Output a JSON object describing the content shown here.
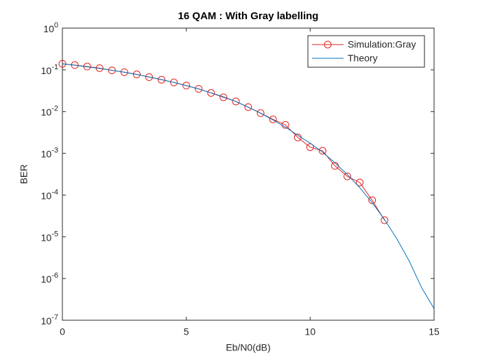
{
  "chart_data": {
    "type": "line",
    "title": "16 QAM : With Gray labelling",
    "xlabel": "Eb/N0(dB)",
    "ylabel": "BER",
    "xlim": [
      0,
      15
    ],
    "xticks": [
      0,
      5,
      10,
      15
    ],
    "ylim": [
      1e-07,
      1
    ],
    "yscale": "log",
    "yticks": [
      {
        "value": 1e-07,
        "label": "10^-7"
      },
      {
        "value": 1e-06,
        "label": "10^-6"
      },
      {
        "value": 1e-05,
        "label": "10^-5"
      },
      {
        "value": 0.0001,
        "label": "10^-4"
      },
      {
        "value": 0.001,
        "label": "10^-3"
      },
      {
        "value": 0.01,
        "label": "10^-2"
      },
      {
        "value": 0.1,
        "label": "10^-1"
      },
      {
        "value": 1,
        "label": "10^0"
      }
    ],
    "legend": "northeast",
    "series": [
      {
        "name": "Simulation:Gray",
        "color": "#e0201b",
        "marker": "circle",
        "x": [
          0,
          0.5,
          1,
          1.5,
          2,
          2.5,
          3,
          3.5,
          4,
          4.5,
          5,
          5.5,
          6,
          6.5,
          7,
          7.5,
          8,
          8.5,
          9,
          9.5,
          10,
          10.5,
          11,
          11.5,
          12,
          12.5,
          13
        ],
        "values": [
          0.14,
          0.13,
          0.12,
          0.11,
          0.097,
          0.088,
          0.078,
          0.067,
          0.058,
          0.05,
          0.042,
          0.035,
          0.028,
          0.022,
          0.0175,
          0.0128,
          0.0092,
          0.0065,
          0.0048,
          0.0024,
          0.0014,
          0.00115,
          0.0005,
          0.00028,
          0.0002,
          7.5e-05,
          2.5e-05
        ]
      },
      {
        "name": "Theory",
        "color": "#0072bd",
        "marker": "none",
        "x": [
          0,
          0.5,
          1,
          1.5,
          2,
          2.5,
          3,
          3.5,
          4,
          4.5,
          5,
          5.5,
          6,
          6.5,
          7,
          7.5,
          8,
          8.5,
          9,
          9.5,
          10,
          10.5,
          11,
          11.5,
          12,
          12.5,
          13,
          13.5,
          14,
          14.5,
          15
        ],
        "values": [
          0.139,
          0.129,
          0.118,
          0.108,
          0.0978,
          0.0874,
          0.0775,
          0.0679,
          0.0585,
          0.0498,
          0.0419,
          0.0347,
          0.0282,
          0.0225,
          0.0175,
          0.0127,
          0.0091,
          0.0063,
          0.00424,
          0.0027,
          0.00175,
          0.00106,
          0.00059,
          0.00031,
          0.00015,
          6.6e-05,
          2.6e-05,
          8.9e-06,
          2.6e-06,
          6e-07,
          1.9e-07
        ]
      }
    ]
  }
}
